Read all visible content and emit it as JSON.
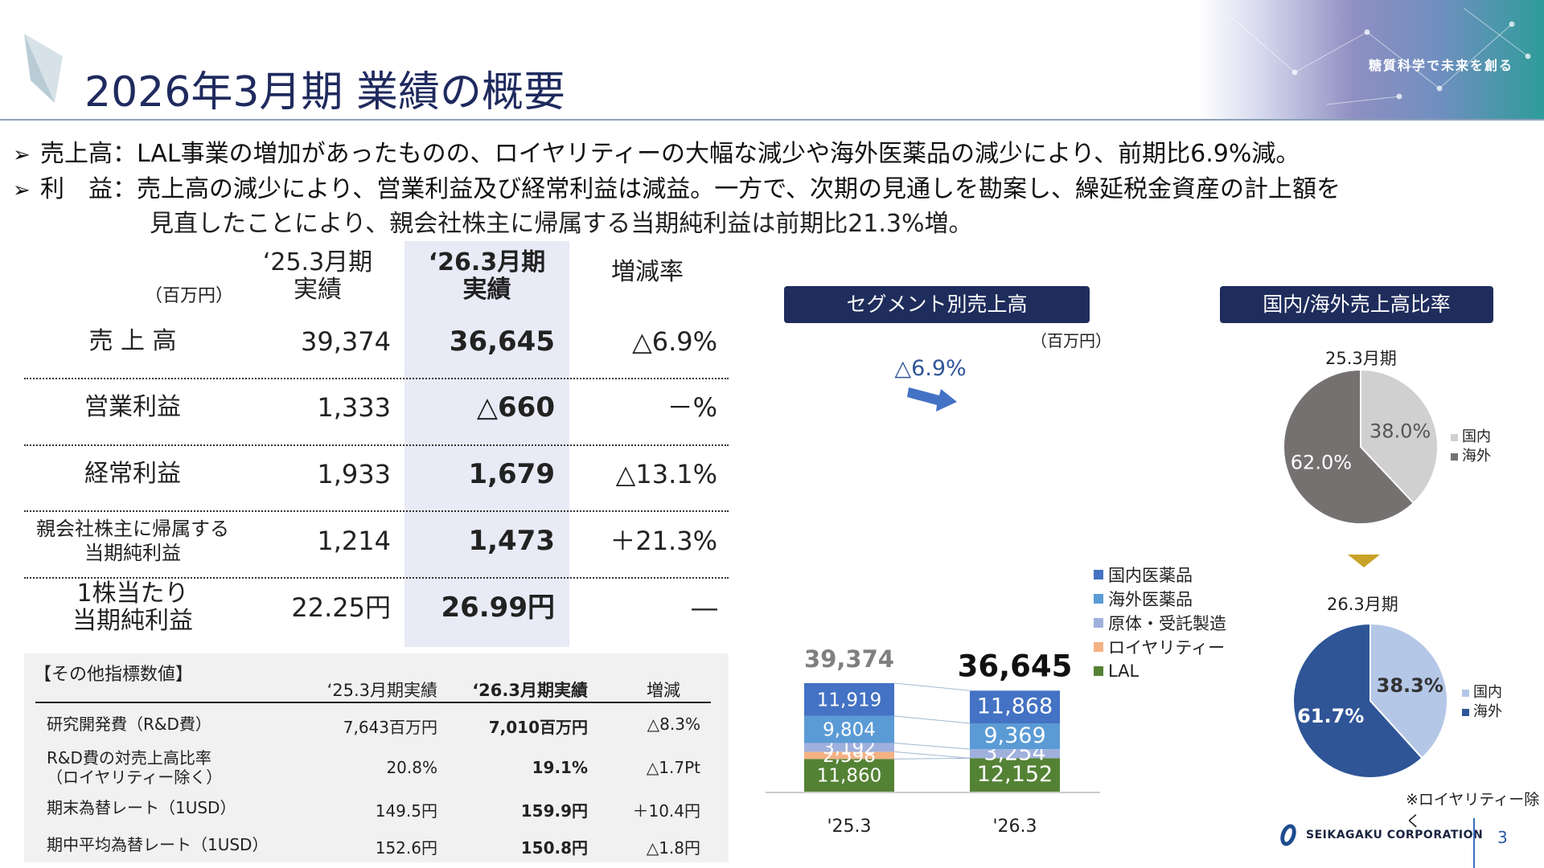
{
  "header": {
    "title": "2026年3月期 業績の概要",
    "slogan": "糖質科学で未来を創る"
  },
  "bullets": {
    "b1": "売上高：LAL事業の増加があったものの、ロイヤリティーの大幅な減少や海外医薬品の減少により、前期比6.9%減。",
    "b2": "利　益：売上高の減少により、営業利益及び経常利益は減益。一方で、次期の見通しを勘案し、繰延税金資産の計上額を",
    "b2_cont": "見直したことにより、親会社株主に帰属する当期純利益は前期比21.3%増。",
    "arrow": "➢"
  },
  "main_table": {
    "unit": "（百万円）",
    "col_prev": "‘25.3月期\n実績",
    "col_prev_l1": "‘25.3月期",
    "col_prev_l2": "実績",
    "col_curr_l1": "‘26.3月期",
    "col_curr_l2": "実績",
    "col_change": "増減率",
    "rows": [
      {
        "label": "売 上 高",
        "prev": "39,374",
        "curr": "36,645",
        "change": "△6.9%"
      },
      {
        "label": "営業利益",
        "prev": "1,333",
        "curr": "△660",
        "change": "－%"
      },
      {
        "label": "経常利益",
        "prev": "1,933",
        "curr": "1,679",
        "change": "△13.1%"
      },
      {
        "label_l1": "親会社株主に帰属する",
        "label_l2": "当期純利益",
        "prev": "1,214",
        "curr": "1,473",
        "change": "＋21.3%"
      },
      {
        "label_l1": "1株当たり",
        "label_l2": "当期純利益",
        "prev": "22.25円",
        "curr": "26.99円",
        "change": "―"
      }
    ]
  },
  "other": {
    "title": "【その他指標数値】",
    "col_prev": "‘25.3月期実績",
    "col_curr": "‘26.3月期実績",
    "col_change": "増減",
    "rows": [
      {
        "label_l1": "研究開発費（R&D費）",
        "label_l2": "",
        "prev": "7,643百万円",
        "curr": "7,010百万円",
        "change": "△8.3%"
      },
      {
        "label_l1": "R&D費の対売上高比率",
        "label_l2": "（ロイヤリティー除く）",
        "prev": "20.8%",
        "curr": "19.1%",
        "change": "△1.7Pt"
      },
      {
        "label_l1": "期末為替レート（1USD）",
        "label_l2": "",
        "prev": "149.5円",
        "curr": "159.9円",
        "change": "＋10.4円"
      },
      {
        "label_l1": "期中平均為替レート（1USD）",
        "label_l2": "",
        "prev": "152.6円",
        "curr": "150.8円",
        "change": "△1.8円"
      }
    ]
  },
  "segment": {
    "banner": "セグメント別売上高",
    "unit": "（百万円）",
    "change_label": "△6.9%",
    "total_prev": "39,374",
    "total_curr": "36,645",
    "legend": [
      "国内医薬品",
      "海外医薬品",
      "原体・受託製造",
      "ロイヤリティー",
      "LAL"
    ]
  },
  "chart_data": [
    {
      "type": "bar",
      "stacked": true,
      "categories": [
        "'25.3",
        "'26.3"
      ],
      "series": [
        {
          "name": "LAL",
          "values": [
            11860,
            12152
          ],
          "color": "#548235"
        },
        {
          "name": "ロイヤリティー",
          "values": [
            2598,
            0
          ],
          "color": "#f4b183"
        },
        {
          "name": "原体・受託製造",
          "values": [
            3192,
            3254
          ],
          "color": "#9fb0dd"
        },
        {
          "name": "海外医薬品",
          "values": [
            9804,
            9369
          ],
          "color": "#5b9bd5"
        },
        {
          "name": "国内医薬品",
          "values": [
            11919,
            11868
          ],
          "color": "#4472c4"
        }
      ],
      "totals": [
        39374,
        36645
      ],
      "title": "セグメント別売上高"
    },
    {
      "type": "pie",
      "title": "25.3月期",
      "labels": [
        "国内",
        "海外"
      ],
      "values": [
        38.0,
        62.0
      ],
      "colors": [
        "#d0d0d0",
        "#767171"
      ]
    },
    {
      "type": "pie",
      "title": "26.3月期",
      "labels": [
        "国内",
        "海外"
      ],
      "values": [
        38.3,
        61.7
      ],
      "colors": [
        "#b4c7e7",
        "#2f5597"
      ]
    }
  ],
  "domestic": {
    "banner": "国内/海外売上高比率",
    "year_prev": "25.3月期",
    "year_curr": "26.3月期",
    "legend_dom": "国内",
    "legend_ovs": "海外",
    "prev_dom": "38.0%",
    "prev_ovs": "62.0%",
    "curr_dom": "38.3%",
    "curr_ovs": "61.7%",
    "note": "※ロイヤリティー除く"
  },
  "footer": {
    "company": "SEIKAGAKU CORPORATION",
    "page": "3"
  }
}
